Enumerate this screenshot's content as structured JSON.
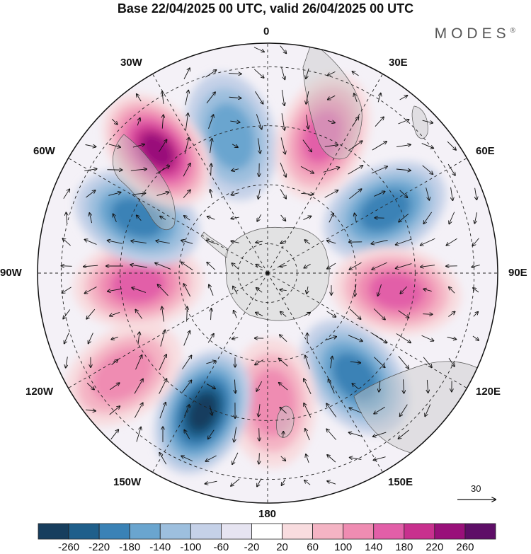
{
  "title": "Base 22/04/2025 00 UTC, valid 26/04/2025 00 UTC",
  "brand": "MODES",
  "brand_mark": "®",
  "longitude_labels": {
    "lon_0": "0",
    "lon_30e": "30E",
    "lon_60e": "60E",
    "lon_90e": "90E",
    "lon_120e": "120E",
    "lon_150e": "150E",
    "lon_180": "180",
    "lon_150w": "150W",
    "lon_120w": "120W",
    "lon_90w": "90W",
    "lon_60w": "60W",
    "lon_30w": "30W"
  },
  "reference_vector": {
    "label": "30"
  },
  "colorbar": {
    "colors": [
      "#173e5e",
      "#1f5f8b",
      "#3a82b6",
      "#6aa5cf",
      "#9dbfde",
      "#c5d1e8",
      "#e6e4f1",
      "#ffffff",
      "#f8dcdf",
      "#f4b4c4",
      "#ef8cb2",
      "#e25fa8",
      "#c8308e",
      "#99107a",
      "#5e0e67"
    ],
    "ticks": [
      "-260",
      "-220",
      "-180",
      "-140",
      "-100",
      "-60",
      "-20",
      "20",
      "60",
      "100",
      "140",
      "180",
      "220",
      "260"
    ]
  },
  "anomalies": [
    {
      "lon": 345,
      "colat": 48,
      "sign": -1,
      "level": 3
    },
    {
      "lon": 22,
      "colat": 50,
      "sign": 1,
      "level": 4
    },
    {
      "lon": 62,
      "colat": 45,
      "sign": -1,
      "level": 4
    },
    {
      "lon": 98,
      "colat": 44,
      "sign": 1,
      "level": 4
    },
    {
      "lon": 140,
      "colat": 46,
      "sign": -1,
      "level": 4
    },
    {
      "lon": 178,
      "colat": 44,
      "sign": 1,
      "level": 3
    },
    {
      "lon": 205,
      "colat": 52,
      "sign": -1,
      "level": 6
    },
    {
      "lon": 235,
      "colat": 60,
      "sign": 1,
      "level": 3
    },
    {
      "lon": 265,
      "colat": 44,
      "sign": 1,
      "level": 4
    },
    {
      "lon": 293,
      "colat": 48,
      "sign": -1,
      "level": 4
    },
    {
      "lon": 318,
      "colat": 56,
      "sign": 1,
      "level": 6
    }
  ]
}
